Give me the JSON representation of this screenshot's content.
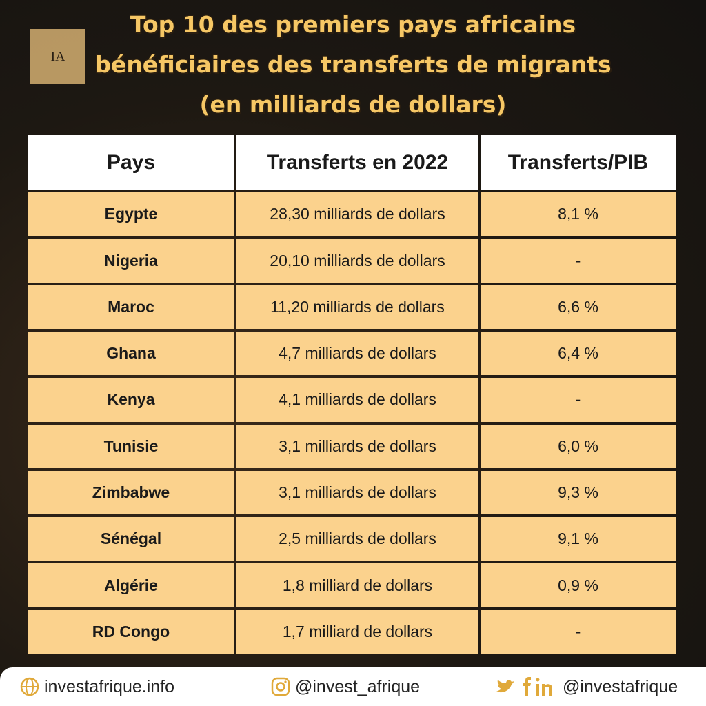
{
  "header": {
    "logo": "IA",
    "title": [
      "Top 10 des premiers pays africains",
      "bénéficiaires des transferts de migrants",
      "(en milliards de dollars)"
    ]
  },
  "table": {
    "columns": [
      "Pays",
      "Transferts en 2022",
      "Transferts/PIB"
    ],
    "rows": [
      [
        "Egypte",
        "28,30 milliards de dollars",
        "8,1 %"
      ],
      [
        "Nigeria",
        "20,10 milliards de dollars",
        "-"
      ],
      [
        "Maroc",
        "11,20 milliards de dollars",
        "6,6 %"
      ],
      [
        "Ghana",
        "4,7 milliards de dollars",
        "6,4 %"
      ],
      [
        "Kenya",
        "4,1 milliards de dollars",
        "-"
      ],
      [
        "Tunisie",
        "3,1 milliards de dollars",
        "6,0 %"
      ],
      [
        "Zimbabwe",
        "3,1 milliards de dollars",
        "9,3 %"
      ],
      [
        "Sénégal",
        "2,5 milliards de dollars",
        "9,1 %"
      ],
      [
        "Algérie",
        "1,8 milliard de dollars",
        "0,9 %"
      ],
      [
        "RD Congo",
        "1,7 milliard de dollars",
        "-"
      ]
    ]
  },
  "footer": {
    "website": "investafrique.info",
    "instagram": "@invest_afrique",
    "social": "@investafrique"
  }
}
